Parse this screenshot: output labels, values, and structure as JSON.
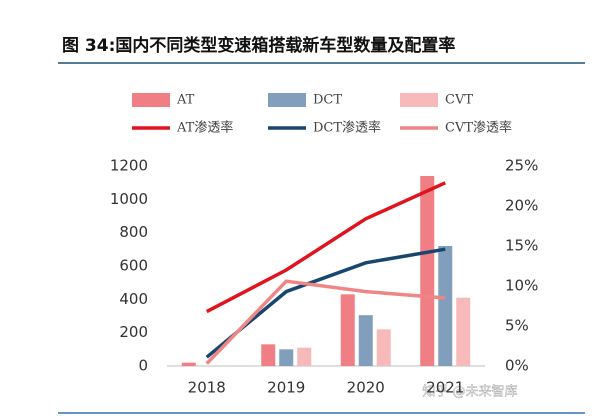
{
  "chart_data": {
    "type": "bar",
    "title": "图 34:国内不同类型变速箱搭载新车型数量及配置率",
    "categories": [
      "2018",
      "2019",
      "2020",
      "2021"
    ],
    "series": [
      {
        "name": "AT",
        "type": "bar",
        "color": "#ef7f84",
        "values": [
          20,
          130,
          430,
          1140
        ]
      },
      {
        "name": "DCT",
        "type": "bar",
        "color": "#819fbd",
        "values": [
          0,
          100,
          305,
          720
        ]
      },
      {
        "name": "CVT",
        "type": "bar",
        "color": "#f7b9b9",
        "values": [
          0,
          110,
          220,
          410
        ]
      },
      {
        "name": "AT渗透率",
        "type": "line",
        "axis": "y2",
        "color": "#e0141e",
        "values": [
          6.8,
          12,
          18.4,
          22.9
        ]
      },
      {
        "name": "DCT渗透率",
        "type": "line",
        "axis": "y2",
        "color": "#17476f",
        "values": [
          1.1,
          9.3,
          12.9,
          14.6
        ]
      },
      {
        "name": "CVT渗透率",
        "type": "line",
        "axis": "y2",
        "color": "#ef8585",
        "values": [
          0.3,
          10.6,
          9.3,
          8.5
        ]
      }
    ],
    "ylim": [
      0,
      1200
    ],
    "yticks": [
      0,
      200,
      400,
      600,
      800,
      1000,
      1200
    ],
    "y2lim": [
      0,
      25
    ],
    "y2ticks": [
      {
        "value": 0,
        "label": "0%"
      },
      {
        "value": 5,
        "label": "5%"
      },
      {
        "value": 10,
        "label": "10%"
      },
      {
        "value": 15,
        "label": "15%"
      },
      {
        "value": 20,
        "label": "20%"
      },
      {
        "value": 25,
        "label": "25%"
      }
    ],
    "watermark": "知乎 @未来智库"
  }
}
